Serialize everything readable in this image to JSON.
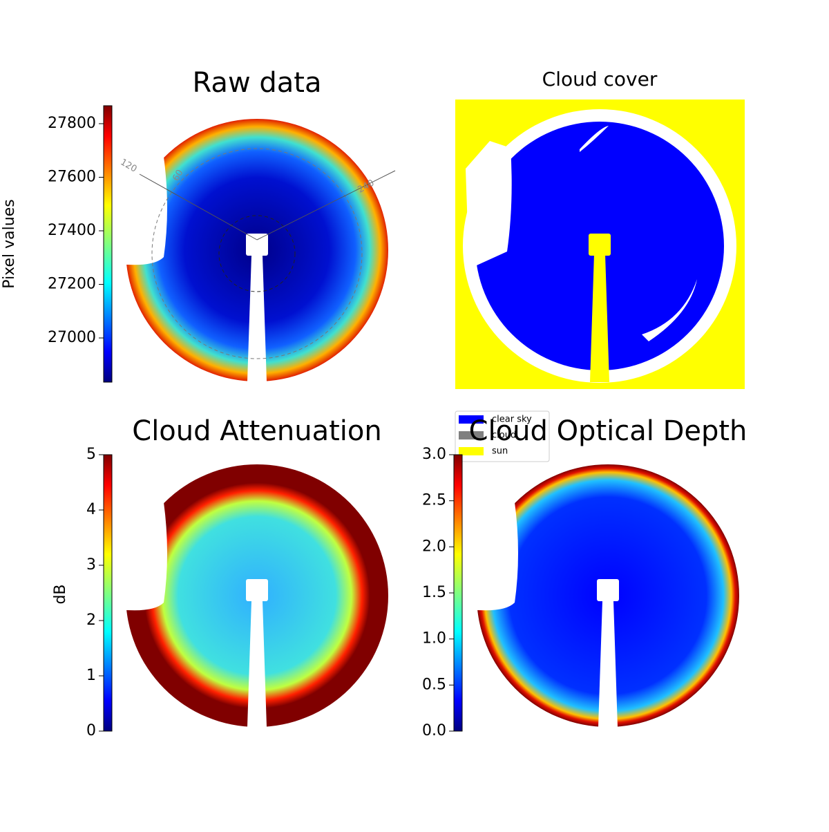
{
  "chart_data": [
    {
      "type": "image",
      "title": "Raw data",
      "colormap": "jet",
      "ylabel": "Pixel values",
      "ylim": [
        26835,
        27867
      ],
      "yticks": [
        27000,
        27200,
        27400,
        27600,
        27800
      ],
      "annotations": [
        "120",
        "60",
        "240"
      ]
    },
    {
      "type": "mask",
      "title": "Cloud cover",
      "series": [
        {
          "name": "clear sky",
          "color": "#0000ff"
        },
        {
          "name": "cloud",
          "color": "#808080"
        },
        {
          "name": "sun",
          "color": "#ffff00"
        }
      ]
    },
    {
      "type": "image",
      "title": "Cloud Attenuation",
      "colormap": "jet",
      "ylabel": "dB",
      "ylim": [
        0,
        5
      ],
      "yticks": [
        0,
        1,
        2,
        3,
        4,
        5
      ]
    },
    {
      "type": "image",
      "title": "Cloud Optical Depth",
      "colormap": "jet",
      "ylim": [
        0,
        3
      ],
      "yticks": [
        {
          "value": 0,
          "label": "0.0"
        },
        0.5,
        {
          "value": 1,
          "label": "1.0"
        },
        1.5,
        {
          "value": 2,
          "label": "2.0"
        },
        2.5,
        {
          "value": 3,
          "label": "3.0"
        }
      ]
    }
  ]
}
